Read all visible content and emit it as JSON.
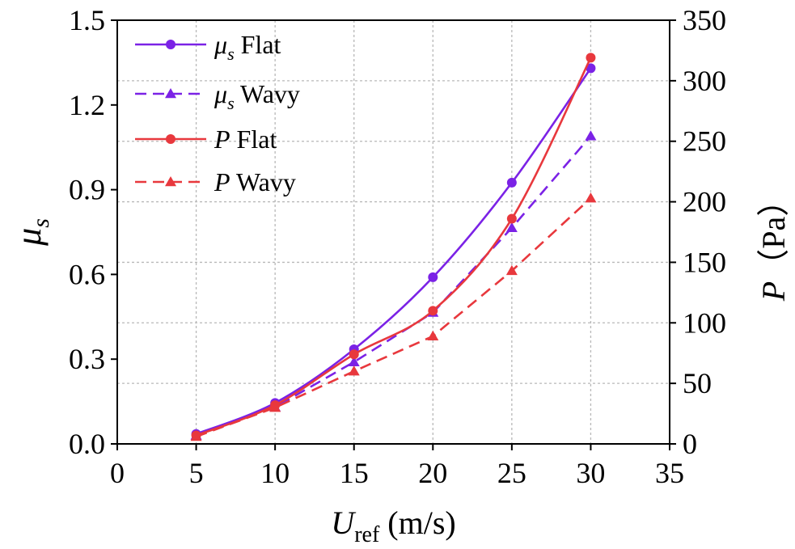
{
  "chart_data": {
    "type": "line",
    "x": [
      5,
      10,
      15,
      20,
      25,
      30
    ],
    "xlim": [
      0,
      35
    ],
    "xticks": [
      "0",
      "5",
      "10",
      "15",
      "20",
      "25",
      "30",
      "35"
    ],
    "xlabel": {
      "main": "U",
      "sub": "ref",
      "unit": " (m/s)"
    },
    "ylim_left": [
      0.0,
      1.5
    ],
    "yticks_left": [
      "0.0",
      "0.3",
      "0.6",
      "0.9",
      "1.2",
      "1.5"
    ],
    "ylabel_left": {
      "main": "μ",
      "sub": "s"
    },
    "ylim_right": [
      0,
      350
    ],
    "yticks_right": [
      "0",
      "50",
      "100",
      "150",
      "200",
      "250",
      "300",
      "350"
    ],
    "ylabel_right": {
      "main": "P",
      "unit": "（Pa）"
    },
    "grid": true,
    "legend_position": "top-left",
    "series": [
      {
        "name": "Flat",
        "symbol": "μ",
        "symbol_sub": "s",
        "axis": "left",
        "color": "#7b22e6",
        "dash": false,
        "marker": "circle",
        "values": [
          0.035,
          0.145,
          0.335,
          0.59,
          0.925,
          1.33
        ]
      },
      {
        "name": "Wavy",
        "symbol": "μ",
        "symbol_sub": "s",
        "axis": "left",
        "color": "#7b22e6",
        "dash": true,
        "marker": "triangle",
        "values": [
          0.03,
          0.13,
          0.29,
          0.465,
          0.765,
          1.09
        ]
      },
      {
        "name": "Flat",
        "symbol": "P",
        "symbol_sub": "",
        "axis": "right",
        "color": "#e8383d",
        "dash": false,
        "marker": "circle",
        "values": [
          7,
          32,
          74,
          110,
          186,
          319
        ]
      },
      {
        "name": "Wavy",
        "symbol": "P",
        "symbol_sub": "",
        "axis": "right",
        "color": "#e8383d",
        "dash": true,
        "marker": "triangle",
        "values": [
          6,
          30,
          60,
          89,
          143,
          203
        ]
      }
    ]
  }
}
